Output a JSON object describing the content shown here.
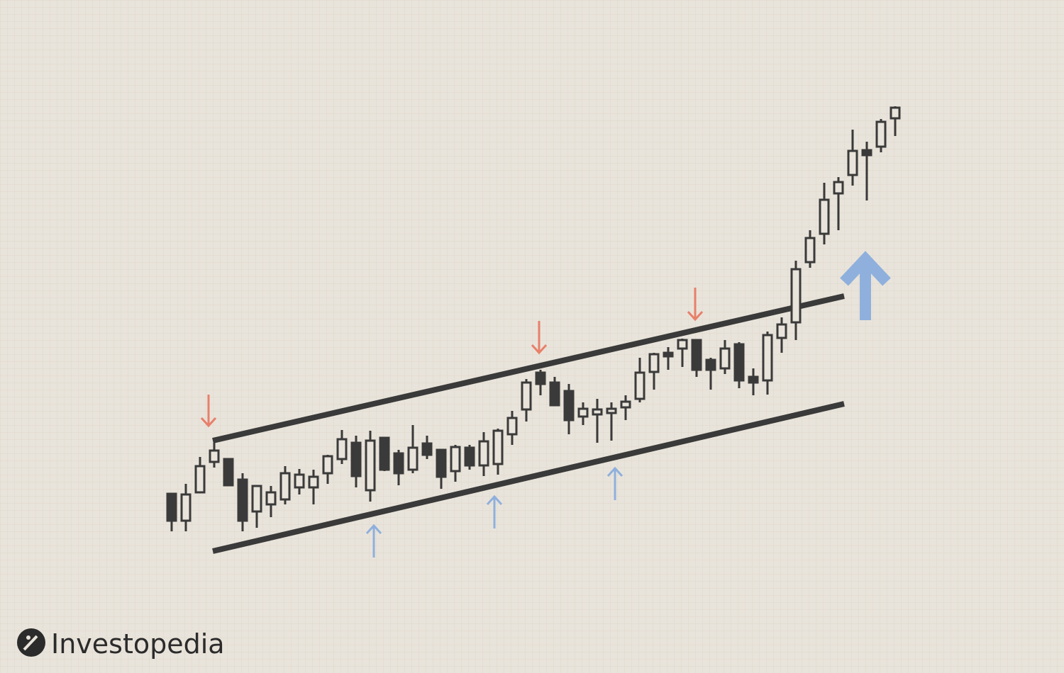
{
  "chart_data": {
    "type": "candlestick",
    "color": "#3a3a3a",
    "ylim": [
      0,
      95
    ],
    "open": [
      25.3,
      21.5,
      25.5,
      29.8,
      30.2,
      27.3,
      22.8,
      23.8,
      24.5,
      26.2,
      26.2,
      28.2,
      30.2,
      32.5,
      25.8,
      33.2,
      31.0,
      28.7,
      32.4,
      31.5,
      28.5,
      31.8,
      29.3,
      29.5,
      33.7,
      37.2,
      42.4,
      41.0,
      39.8,
      36.2,
      36.5,
      36.7,
      37.5,
      38.7,
      42.5,
      45.2,
      45.8,
      47.0,
      44.2,
      43.0,
      46.4,
      41.8,
      41.3,
      47.3,
      49.5,
      58.0,
      62.0,
      67.7,
      70.3,
      73.8,
      74.3,
      78.3
    ],
    "high": [
      25.3,
      26.7,
      30.5,
      32.5,
      30.2,
      28.2,
      26.4,
      26.4,
      29.2,
      28.8,
      28.7,
      30.8,
      34.3,
      33.5,
      34.2,
      33.2,
      31.5,
      35.0,
      33.5,
      31.5,
      32.2,
      32.2,
      34.0,
      34.5,
      37.0,
      41.5,
      42.8,
      41.8,
      40.8,
      38.2,
      38.7,
      38.2,
      39.2,
      44.5,
      45.2,
      46.0,
      47.2,
      47.0,
      44.5,
      47.0,
      46.7,
      43.0,
      48.2,
      50.2,
      58.2,
      62.5,
      69.2,
      70.0,
      76.7,
      75.0,
      78.2,
      80.0
    ],
    "low": [
      20.0,
      20.0,
      25.5,
      29.0,
      26.5,
      20.0,
      20.5,
      22.0,
      23.8,
      25.2,
      23.8,
      26.7,
      29.5,
      26.2,
      24.2,
      28.5,
      26.5,
      28.2,
      30.2,
      26.0,
      27.0,
      28.7,
      27.8,
      28.0,
      32.2,
      35.5,
      39.2,
      37.8,
      33.7,
      35.0,
      32.5,
      32.8,
      35.7,
      38.2,
      40.0,
      42.8,
      43.2,
      41.8,
      40.0,
      42.2,
      40.2,
      39.2,
      39.3,
      45.2,
      47.0,
      57.2,
      60.5,
      62.5,
      68.8,
      66.7,
      73.5,
      75.8
    ],
    "close": [
      21.5,
      25.2,
      29.2,
      31.4,
      26.5,
      21.5,
      26.4,
      25.5,
      28.2,
      28.0,
      27.7,
      30.6,
      33.0,
      27.8,
      32.8,
      28.7,
      28.2,
      31.8,
      30.8,
      27.7,
      31.9,
      29.3,
      32.7,
      34.2,
      36.0,
      41.0,
      40.8,
      37.8,
      35.7,
      37.3,
      37.2,
      37.3,
      38.3,
      42.4,
      45.0,
      44.7,
      47.0,
      42.8,
      42.8,
      45.8,
      41.3,
      41.0,
      47.7,
      49.2,
      57.0,
      61.4,
      66.8,
      69.3,
      73.7,
      73.1,
      77.8,
      79.8
    ]
  },
  "logo": {
    "text": "Investopedia"
  }
}
